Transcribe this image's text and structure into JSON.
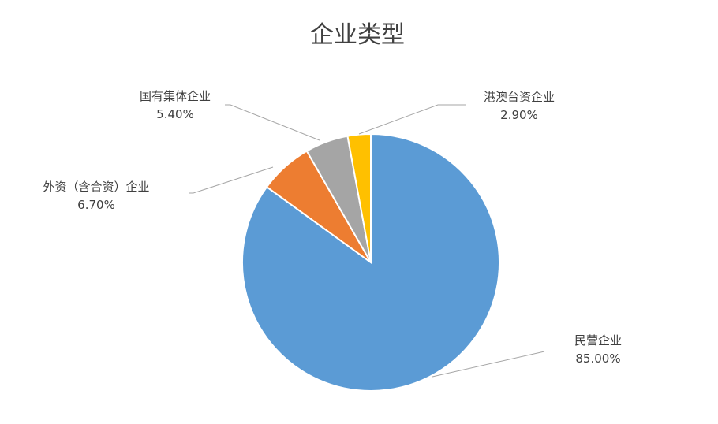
{
  "chart_data": {
    "type": "pie",
    "title": "企业类型",
    "start_angle": "12 o'clock",
    "direction": "clockwise",
    "slices": [
      {
        "label": "民营企业",
        "value": 85.0,
        "display": "85.00%",
        "color": "#5B9BD5"
      },
      {
        "label": "外资（含合资）企业",
        "value": 6.7,
        "display": "6.70%",
        "color": "#ED7D31"
      },
      {
        "label": "国有集体企业",
        "value": 5.4,
        "display": "5.40%",
        "color": "#A5A5A5"
      },
      {
        "label": "港澳台资企业",
        "value": 2.9,
        "display": "2.90%",
        "color": "#FFC000"
      }
    ],
    "legend": "none",
    "data_labels": "outside with leader lines"
  }
}
